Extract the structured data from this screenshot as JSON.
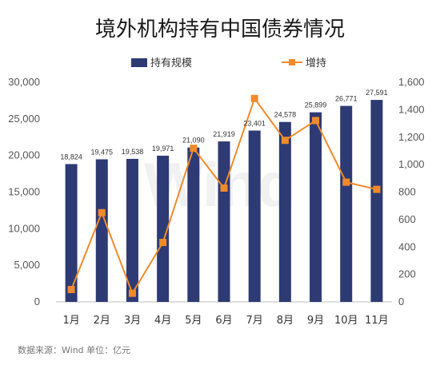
{
  "chart_data": {
    "type": "bar",
    "title": "境外机构持有中国债券情况",
    "categories": [
      "1月",
      "2月",
      "3月",
      "4月",
      "5月",
      "6月",
      "7月",
      "8月",
      "9月",
      "10月",
      "11月"
    ],
    "series": [
      {
        "name": "持有规模",
        "type": "bar",
        "axis": "left",
        "values": [
          18824,
          19475,
          19538,
          19971,
          21090,
          21919,
          23401,
          24578,
          25899,
          26771,
          27591
        ],
        "labels": [
          "18,824",
          "19,475",
          "19,538",
          "19,971",
          "21,090",
          "21,919",
          "23,401",
          "24,578",
          "25,899",
          "26,771",
          "27,591"
        ]
      },
      {
        "name": "增持",
        "type": "line",
        "axis": "right",
        "values": [
          90,
          650,
          63,
          433,
          1119,
          829,
          1482,
          1177,
          1321,
          872,
          820
        ]
      }
    ],
    "ylim_left": [
      0,
      30000
    ],
    "ylim_right": [
      0,
      1600
    ],
    "yticks_left": [
      "0",
      "5,000",
      "10,000",
      "15,000",
      "20,000",
      "25,000",
      "30,000"
    ],
    "yticks_right": [
      "0",
      "200",
      "400",
      "600",
      "800",
      "1,000",
      "1,200",
      "1,400",
      "1,600"
    ],
    "legend_position": "top",
    "grid": false,
    "colors": {
      "bar": "#2e3a73",
      "line": "#f08a2c"
    },
    "watermark": "Wind"
  },
  "footer": {
    "source": "数据来源：Wind    单位：亿元"
  }
}
